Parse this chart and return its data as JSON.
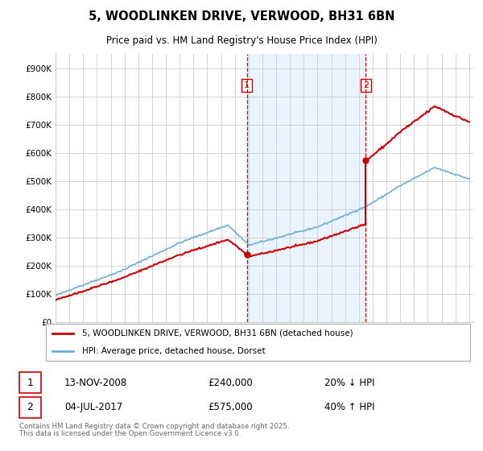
{
  "title_line1": "5, WOODLINKEN DRIVE, VERWOOD, BH31 6BN",
  "title_line2": "Price paid vs. HM Land Registry's House Price Index (HPI)",
  "ylim": [
    0,
    950000
  ],
  "yticks": [
    0,
    100000,
    200000,
    300000,
    400000,
    500000,
    600000,
    700000,
    800000,
    900000
  ],
  "ytick_labels": [
    "£0",
    "£100K",
    "£200K",
    "£300K",
    "£400K",
    "£500K",
    "£600K",
    "£700K",
    "£800K",
    "£900K"
  ],
  "legend_line1": "5, WOODLINKEN DRIVE, VERWOOD, BH31 6BN (detached house)",
  "legend_line2": "HPI: Average price, detached house, Dorset",
  "sale1_date": "13-NOV-2008",
  "sale1_price": 240000,
  "sale1_label": "20% ↓ HPI",
  "sale2_date": "04-JUL-2017",
  "sale2_price": 575000,
  "sale2_label": "40% ↑ HPI",
  "footer": "Contains HM Land Registry data © Crown copyright and database right 2025.\nThis data is licensed under the Open Government Licence v3.0.",
  "sale_color": "#cc0000",
  "hpi_color": "#6baed6",
  "bg_color": "#ffffff",
  "shade_color": "#ddeeff",
  "grid_color": "#cccccc"
}
